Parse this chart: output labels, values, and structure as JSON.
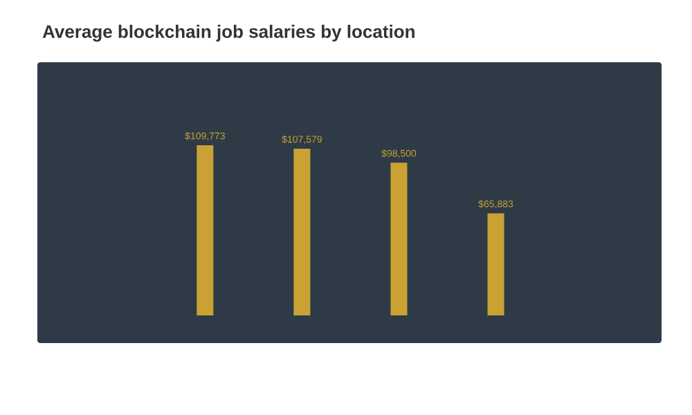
{
  "chart_data": {
    "type": "bar",
    "title": "Average blockchain job salaries by location",
    "categories": [
      null,
      null,
      null,
      null
    ],
    "values": [
      109773,
      107579,
      98500,
      65883
    ],
    "value_labels": [
      "$109,773",
      "$107,579",
      "$98,500",
      "$65,883"
    ],
    "color": "#c9a233",
    "relative": false
  }
}
